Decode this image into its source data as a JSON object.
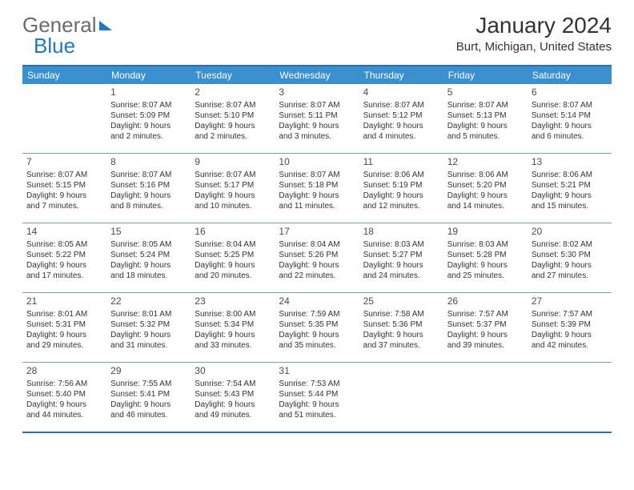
{
  "logo": {
    "part1": "General",
    "part2": "Blue"
  },
  "title": "January 2024",
  "location": "Burt, Michigan, United States",
  "daysOfWeek": [
    "Sunday",
    "Monday",
    "Tuesday",
    "Wednesday",
    "Thursday",
    "Friday",
    "Saturday"
  ],
  "colors": {
    "header_bg": "#3a8fcf",
    "border": "#2a6fa8",
    "divider": "#7a9fb8",
    "text": "#333333",
    "logo_gray": "#6b6b6b",
    "logo_blue": "#2178c0"
  },
  "weeks": [
    [
      null,
      {
        "n": "1",
        "sr": "Sunrise: 8:07 AM",
        "ss": "Sunset: 5:09 PM",
        "d1": "Daylight: 9 hours",
        "d2": "and 2 minutes."
      },
      {
        "n": "2",
        "sr": "Sunrise: 8:07 AM",
        "ss": "Sunset: 5:10 PM",
        "d1": "Daylight: 9 hours",
        "d2": "and 2 minutes."
      },
      {
        "n": "3",
        "sr": "Sunrise: 8:07 AM",
        "ss": "Sunset: 5:11 PM",
        "d1": "Daylight: 9 hours",
        "d2": "and 3 minutes."
      },
      {
        "n": "4",
        "sr": "Sunrise: 8:07 AM",
        "ss": "Sunset: 5:12 PM",
        "d1": "Daylight: 9 hours",
        "d2": "and 4 minutes."
      },
      {
        "n": "5",
        "sr": "Sunrise: 8:07 AM",
        "ss": "Sunset: 5:13 PM",
        "d1": "Daylight: 9 hours",
        "d2": "and 5 minutes."
      },
      {
        "n": "6",
        "sr": "Sunrise: 8:07 AM",
        "ss": "Sunset: 5:14 PM",
        "d1": "Daylight: 9 hours",
        "d2": "and 6 minutes."
      }
    ],
    [
      {
        "n": "7",
        "sr": "Sunrise: 8:07 AM",
        "ss": "Sunset: 5:15 PM",
        "d1": "Daylight: 9 hours",
        "d2": "and 7 minutes."
      },
      {
        "n": "8",
        "sr": "Sunrise: 8:07 AM",
        "ss": "Sunset: 5:16 PM",
        "d1": "Daylight: 9 hours",
        "d2": "and 8 minutes."
      },
      {
        "n": "9",
        "sr": "Sunrise: 8:07 AM",
        "ss": "Sunset: 5:17 PM",
        "d1": "Daylight: 9 hours",
        "d2": "and 10 minutes."
      },
      {
        "n": "10",
        "sr": "Sunrise: 8:07 AM",
        "ss": "Sunset: 5:18 PM",
        "d1": "Daylight: 9 hours",
        "d2": "and 11 minutes."
      },
      {
        "n": "11",
        "sr": "Sunrise: 8:06 AM",
        "ss": "Sunset: 5:19 PM",
        "d1": "Daylight: 9 hours",
        "d2": "and 12 minutes."
      },
      {
        "n": "12",
        "sr": "Sunrise: 8:06 AM",
        "ss": "Sunset: 5:20 PM",
        "d1": "Daylight: 9 hours",
        "d2": "and 14 minutes."
      },
      {
        "n": "13",
        "sr": "Sunrise: 8:06 AM",
        "ss": "Sunset: 5:21 PM",
        "d1": "Daylight: 9 hours",
        "d2": "and 15 minutes."
      }
    ],
    [
      {
        "n": "14",
        "sr": "Sunrise: 8:05 AM",
        "ss": "Sunset: 5:22 PM",
        "d1": "Daylight: 9 hours",
        "d2": "and 17 minutes."
      },
      {
        "n": "15",
        "sr": "Sunrise: 8:05 AM",
        "ss": "Sunset: 5:24 PM",
        "d1": "Daylight: 9 hours",
        "d2": "and 18 minutes."
      },
      {
        "n": "16",
        "sr": "Sunrise: 8:04 AM",
        "ss": "Sunset: 5:25 PM",
        "d1": "Daylight: 9 hours",
        "d2": "and 20 minutes."
      },
      {
        "n": "17",
        "sr": "Sunrise: 8:04 AM",
        "ss": "Sunset: 5:26 PM",
        "d1": "Daylight: 9 hours",
        "d2": "and 22 minutes."
      },
      {
        "n": "18",
        "sr": "Sunrise: 8:03 AM",
        "ss": "Sunset: 5:27 PM",
        "d1": "Daylight: 9 hours",
        "d2": "and 24 minutes."
      },
      {
        "n": "19",
        "sr": "Sunrise: 8:03 AM",
        "ss": "Sunset: 5:28 PM",
        "d1": "Daylight: 9 hours",
        "d2": "and 25 minutes."
      },
      {
        "n": "20",
        "sr": "Sunrise: 8:02 AM",
        "ss": "Sunset: 5:30 PM",
        "d1": "Daylight: 9 hours",
        "d2": "and 27 minutes."
      }
    ],
    [
      {
        "n": "21",
        "sr": "Sunrise: 8:01 AM",
        "ss": "Sunset: 5:31 PM",
        "d1": "Daylight: 9 hours",
        "d2": "and 29 minutes."
      },
      {
        "n": "22",
        "sr": "Sunrise: 8:01 AM",
        "ss": "Sunset: 5:32 PM",
        "d1": "Daylight: 9 hours",
        "d2": "and 31 minutes."
      },
      {
        "n": "23",
        "sr": "Sunrise: 8:00 AM",
        "ss": "Sunset: 5:34 PM",
        "d1": "Daylight: 9 hours",
        "d2": "and 33 minutes."
      },
      {
        "n": "24",
        "sr": "Sunrise: 7:59 AM",
        "ss": "Sunset: 5:35 PM",
        "d1": "Daylight: 9 hours",
        "d2": "and 35 minutes."
      },
      {
        "n": "25",
        "sr": "Sunrise: 7:58 AM",
        "ss": "Sunset: 5:36 PM",
        "d1": "Daylight: 9 hours",
        "d2": "and 37 minutes."
      },
      {
        "n": "26",
        "sr": "Sunrise: 7:57 AM",
        "ss": "Sunset: 5:37 PM",
        "d1": "Daylight: 9 hours",
        "d2": "and 39 minutes."
      },
      {
        "n": "27",
        "sr": "Sunrise: 7:57 AM",
        "ss": "Sunset: 5:39 PM",
        "d1": "Daylight: 9 hours",
        "d2": "and 42 minutes."
      }
    ],
    [
      {
        "n": "28",
        "sr": "Sunrise: 7:56 AM",
        "ss": "Sunset: 5:40 PM",
        "d1": "Daylight: 9 hours",
        "d2": "and 44 minutes."
      },
      {
        "n": "29",
        "sr": "Sunrise: 7:55 AM",
        "ss": "Sunset: 5:41 PM",
        "d1": "Daylight: 9 hours",
        "d2": "and 46 minutes."
      },
      {
        "n": "30",
        "sr": "Sunrise: 7:54 AM",
        "ss": "Sunset: 5:43 PM",
        "d1": "Daylight: 9 hours",
        "d2": "and 49 minutes."
      },
      {
        "n": "31",
        "sr": "Sunrise: 7:53 AM",
        "ss": "Sunset: 5:44 PM",
        "d1": "Daylight: 9 hours",
        "d2": "and 51 minutes."
      },
      null,
      null,
      null
    ]
  ]
}
